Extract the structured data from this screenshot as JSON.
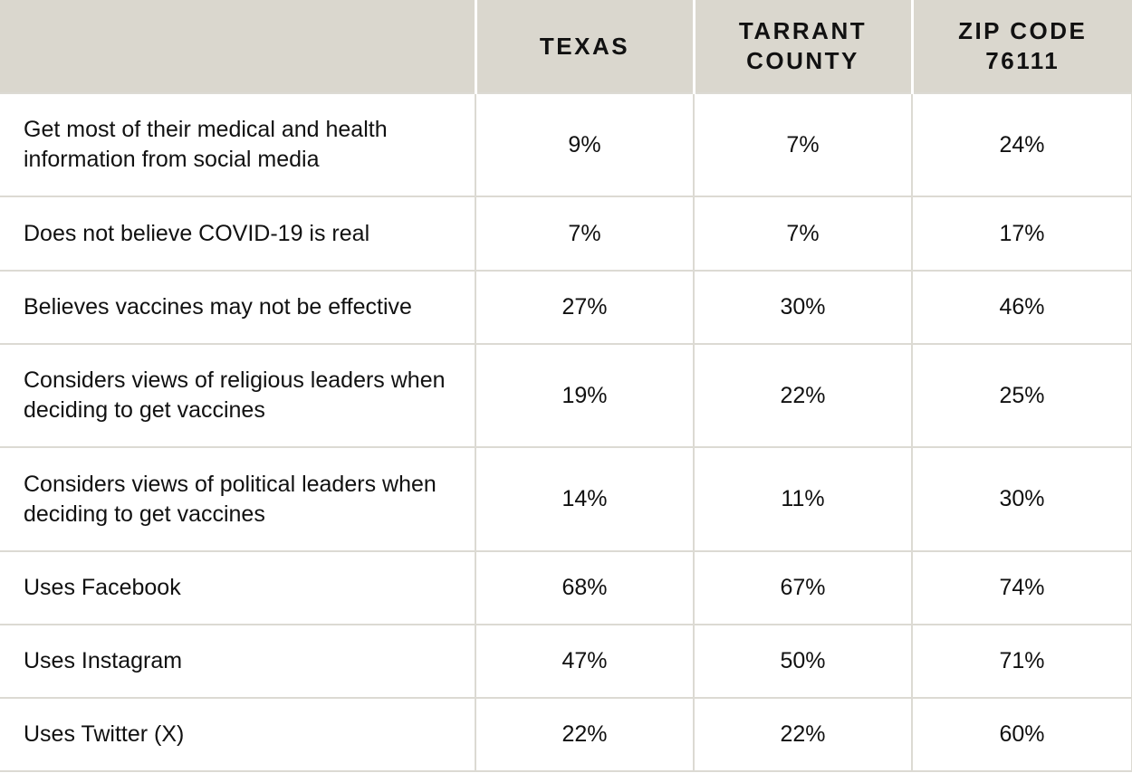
{
  "chart_data": {
    "type": "table",
    "columns": [
      "",
      "TEXAS",
      "TARRANT COUNTY",
      "ZIP CODE 76111"
    ],
    "rows": [
      {
        "label": "Get most of their medical and health information from social media",
        "values": [
          "9%",
          "7%",
          "24%"
        ]
      },
      {
        "label": "Does not believe COVID-19 is real",
        "values": [
          "7%",
          "7%",
          "17%"
        ]
      },
      {
        "label": "Believes vaccines may not be effective",
        "values": [
          "27%",
          "30%",
          "46%"
        ]
      },
      {
        "label": "Considers views of religious leaders when deciding to get vaccines",
        "values": [
          "19%",
          "22%",
          "25%"
        ]
      },
      {
        "label": "Considers views of political leaders when deciding to get vaccines",
        "values": [
          "14%",
          "11%",
          "30%"
        ]
      },
      {
        "label": "Uses Facebook",
        "values": [
          "68%",
          "67%",
          "74%"
        ]
      },
      {
        "label": "Uses Instagram",
        "values": [
          "47%",
          "50%",
          "71%"
        ]
      },
      {
        "label": "Uses Twitter (X)",
        "values": [
          "22%",
          "22%",
          "60%"
        ]
      }
    ],
    "colors": {
      "header_bg": "#dad7ce",
      "grid": "#dcdad3",
      "text": "#111111"
    }
  }
}
